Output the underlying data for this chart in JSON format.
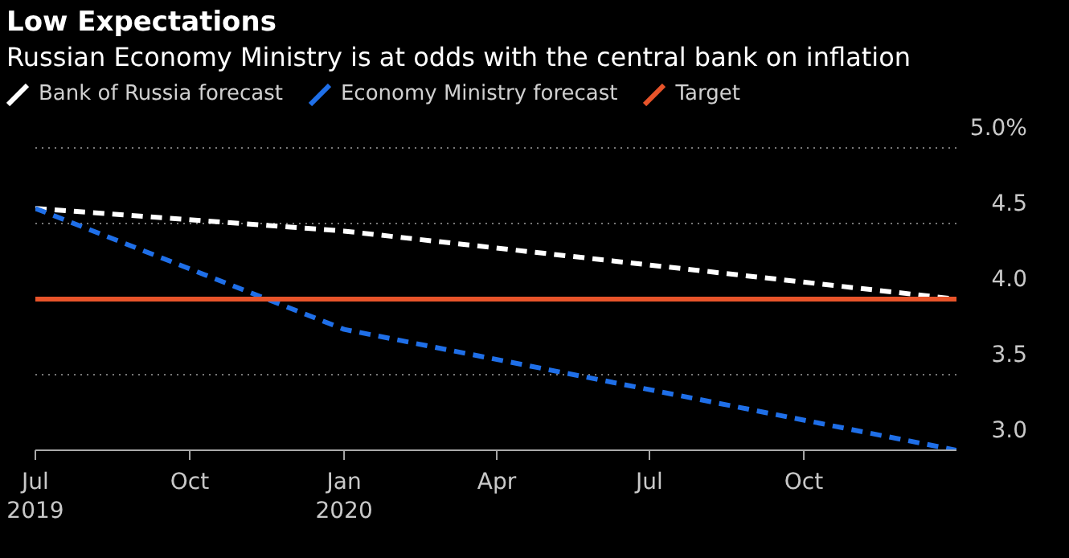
{
  "chart_data": {
    "type": "line",
    "title": "Low Expectations",
    "subtitle": "Russian Economy Ministry is at odds with the central bank on inflation",
    "x": [
      "2019-07-01",
      "2020-01-01",
      "2020-12-31"
    ],
    "series": [
      {
        "name": "Bank of Russia forecast",
        "color": "#ffffff",
        "values": [
          4.6,
          4.45,
          4.0
        ],
        "line_style": "dashed"
      },
      {
        "name": "Economy Ministry forecast",
        "color": "#1f6fe8",
        "values": [
          4.6,
          3.8,
          3.0
        ],
        "line_style": "dashed"
      },
      {
        "name": "Target",
        "color": "#e8542a",
        "values": [
          4.0,
          4.0,
          4.0
        ],
        "line_style": "solid"
      }
    ],
    "xlim": [
      "2019-07-01",
      "2020-12-31"
    ],
    "xticks": [
      {
        "value": "2019-07-01",
        "label": "Jul\n2019"
      },
      {
        "value": "2019-10-01",
        "label": "Oct"
      },
      {
        "value": "2020-01-01",
        "label": "Jan\n2020"
      },
      {
        "value": "2020-04-01",
        "label": "Apr"
      },
      {
        "value": "2020-07-01",
        "label": "Jul"
      },
      {
        "value": "2020-10-01",
        "label": "Oct"
      }
    ],
    "ylim": [
      3.0,
      5.0
    ],
    "yticks": [
      {
        "value": 3.0,
        "label": "3.0"
      },
      {
        "value": 3.5,
        "label": "3.5"
      },
      {
        "value": 4.0,
        "label": "4.0"
      },
      {
        "value": 4.5,
        "label": "4.5"
      },
      {
        "value": 5.0,
        "label": "5.0%"
      }
    ],
    "grid": "y",
    "legend": "top left",
    "marker": "none"
  }
}
